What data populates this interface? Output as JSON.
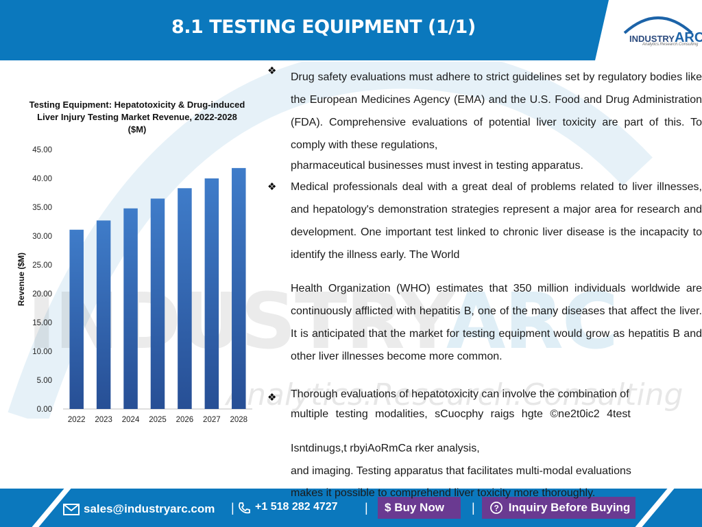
{
  "header": {
    "title": "8.1 TESTING EQUIPMENT (1/1)",
    "logo_main": "INDUSTRY",
    "logo_accent": "ARC",
    "logo_tagline": "Analytics.Research.Consulting"
  },
  "watermark": {
    "main": "INDUSTRY",
    "accent": "ARC",
    "sub": "Analytics.Research.Consulting"
  },
  "chart_data": {
    "type": "bar",
    "title": "Testing Equipment: Hepatotoxicity & Drug-induced Liver Injury Testing Market Revenue, 2022-2028 ($M)",
    "title_lines": [
      "Testing Equipment: Hepatotoxicity & Drug-induced",
      "Liver Injury Testing Market Revenue, 2022-2028",
      "($M)"
    ],
    "xlabel": "",
    "ylabel": "Revenue ($M)",
    "categories": [
      "2022",
      "2023",
      "2024",
      "2025",
      "2026",
      "2027",
      "2028"
    ],
    "values": [
      31.1,
      32.7,
      34.8,
      36.5,
      38.3,
      40.0,
      41.8
    ],
    "ylim": [
      0,
      45
    ],
    "yticks": [
      "0.00",
      "5.00",
      "10.00",
      "15.00",
      "20.00",
      "25.00",
      "30.00",
      "35.00",
      "40.00",
      "45.00"
    ],
    "bar_color": "#2e66b3",
    "grid": false,
    "legend": "none"
  },
  "content": {
    "p1": "Drug safety evaluations must adhere to strict guidelines set by regulatory bodies like the European Medicines Agency (EMA) and the U.S. Food and Drug Administration (FDA). Comprehensive evaluations of potential liver toxicity are part of this. To comply with these regulations,",
    "p1_last": "pharmaceutical businesses must invest in testing apparatus.",
    "p2": "Medical professionals deal with a great deal of problems related to liver illnesses, and hepatology's demonstration strategies represent a major area for research and development. One important test linked to chronic liver disease is the incapacity to identify the illness early. The World",
    "p3": "Health Organization (WHO) estimates that 350 million individuals worldwide are continuously afflicted with hepatitis B, one of the many diseases that affect the liver. It is anticipated that the market for testing equipment would grow as hepatitis B and other liver illnesses become more common.",
    "p4_line1": "Thorough evaluations of hepatotoxicity can involve the combination of",
    "p4_line2": "multiple testing modalities, sCuocphy raigs hgte ©ne2t0ic2 4test",
    "p4_line3": "Isntdinugs,t rbyiAoRmCa rker analysis,",
    "p4_line4": "and imaging. Testing apparatus that facilitates multi-modal evaluations",
    "p4_line5": "makes it possible to comprehend liver toxicity more thoroughly."
  },
  "footer": {
    "email": "sales@industryarc.com",
    "phone": "+1 518 282 4727",
    "buy_now": "Buy Now",
    "inquiry": "Inquiry Before Buying",
    "sep1": "|",
    "sep2": "|",
    "sep3": "|"
  }
}
